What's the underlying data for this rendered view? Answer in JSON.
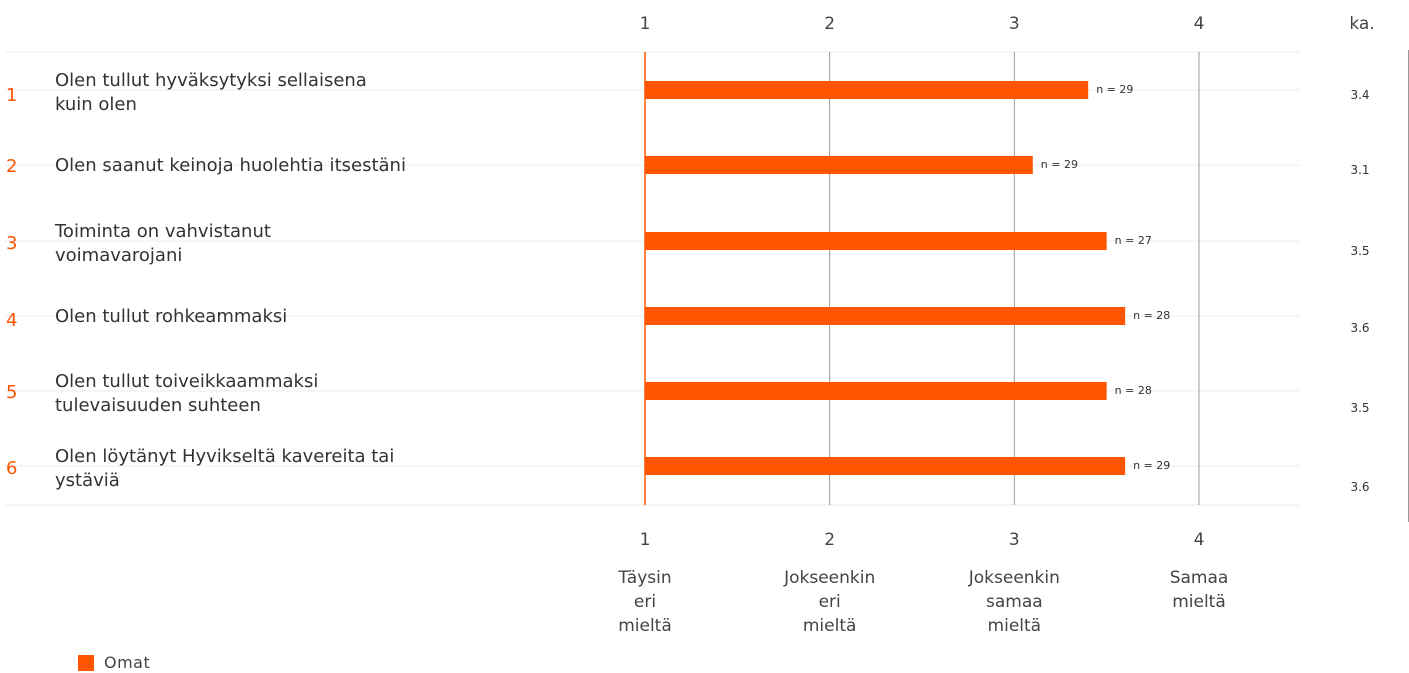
{
  "chart_data": {
    "type": "bar",
    "orientation": "horizontal",
    "xlim": [
      1,
      4
    ],
    "ticks": [
      "1",
      "2",
      "3",
      "4"
    ],
    "scale_labels": [
      [
        "Täysin",
        "eri",
        "mieltä"
      ],
      [
        "Jokseenkin",
        "eri",
        "mieltä"
      ],
      [
        "Jokseenkin",
        "samaa",
        "mieltä"
      ],
      [
        "Samaa",
        "mieltä"
      ]
    ],
    "avg_header": "ka.",
    "categories": [
      {
        "index": "1",
        "label": [
          "Olen tullut hyväksytyksi sellaisena",
          "kuin olen"
        ]
      },
      {
        "index": "2",
        "label": [
          "Olen saanut keinoja huolehtia itsestäni"
        ]
      },
      {
        "index": "3",
        "label": [
          "Toiminta on vahvistanut",
          "voimavarojani"
        ]
      },
      {
        "index": "4",
        "label": [
          "Olen tullut rohkeammaksi"
        ]
      },
      {
        "index": "5",
        "label": [
          "Olen tullut toiveikkaammaksi",
          "tulevaisuuden suhteen"
        ]
      },
      {
        "index": "6",
        "label": [
          "Olen löytänyt Hyvikseltä kavereita tai",
          "ystäviä"
        ]
      }
    ],
    "series": [
      {
        "name": "Omat",
        "color": "#ff5500",
        "values": [
          3.4,
          3.1,
          3.5,
          3.6,
          3.5,
          3.6
        ],
        "n_labels": [
          "n = 29",
          "n = 29",
          "n = 27",
          "n = 28",
          "n = 28",
          "n = 29"
        ]
      }
    ],
    "averages": [
      "3.4",
      "3.1",
      "3.5",
      "3.6",
      "3.5",
      "3.6"
    ]
  }
}
